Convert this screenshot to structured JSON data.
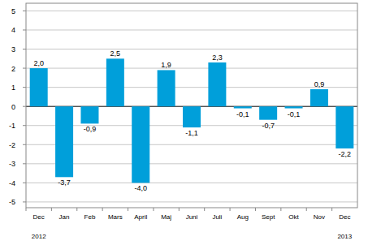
{
  "chart_data": {
    "type": "bar",
    "categories": [
      "Dec",
      "Jan",
      "Feb",
      "Mars",
      "April",
      "Maj",
      "Juni",
      "Juli",
      "Aug",
      "Sept",
      "Okt",
      "Nov",
      "Dec"
    ],
    "values": [
      2.0,
      -3.7,
      -0.9,
      2.5,
      -4.0,
      1.9,
      -1.1,
      2.3,
      -0.1,
      -0.7,
      -0.1,
      0.9,
      -2.2
    ],
    "value_labels": [
      "2,0",
      "-3,7",
      "-0,9",
      "2,5",
      "-4,0",
      "1,9",
      "-1,1",
      "2,3",
      "-0,1",
      "-0,7",
      "-0,1",
      "0,9",
      "-2,2"
    ],
    "color": "#009fda",
    "ylim": [
      -5.3,
      5.4
    ],
    "yticks": [
      -5,
      -4,
      -3,
      -2,
      -1,
      0,
      1,
      2,
      3,
      4,
      5
    ],
    "grid": true,
    "data_labels": true,
    "annotations": [
      "2012",
      "2013"
    ]
  }
}
